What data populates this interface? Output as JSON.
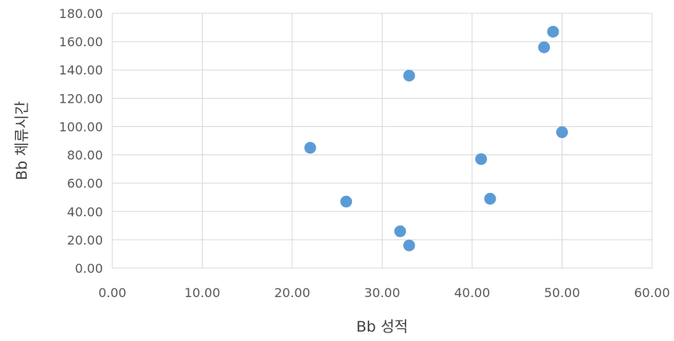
{
  "chart_data": {
    "type": "scatter",
    "title": "",
    "xlabel": "Bb 성적",
    "ylabel": "Bb 체류시간",
    "xlim": [
      0,
      60
    ],
    "ylim": [
      0,
      180
    ],
    "x_ticks": [
      "0.00",
      "10.00",
      "20.00",
      "30.00",
      "40.00",
      "50.00",
      "60.00"
    ],
    "y_ticks": [
      "0.00",
      "20.00",
      "40.00",
      "60.00",
      "80.00",
      "100.00",
      "120.00",
      "140.00",
      "160.00",
      "180.00"
    ],
    "grid": true,
    "marker_color": "#5b9bd5",
    "series": [
      {
        "points": [
          {
            "x": 22.0,
            "y": 85.0
          },
          {
            "x": 26.0,
            "y": 47.0
          },
          {
            "x": 32.0,
            "y": 26.0
          },
          {
            "x": 33.0,
            "y": 16.0
          },
          {
            "x": 33.0,
            "y": 136.0
          },
          {
            "x": 41.0,
            "y": 77.0
          },
          {
            "x": 42.0,
            "y": 49.0
          },
          {
            "x": 48.0,
            "y": 156.0
          },
          {
            "x": 49.0,
            "y": 167.0
          },
          {
            "x": 50.0,
            "y": 96.0
          }
        ]
      }
    ]
  }
}
